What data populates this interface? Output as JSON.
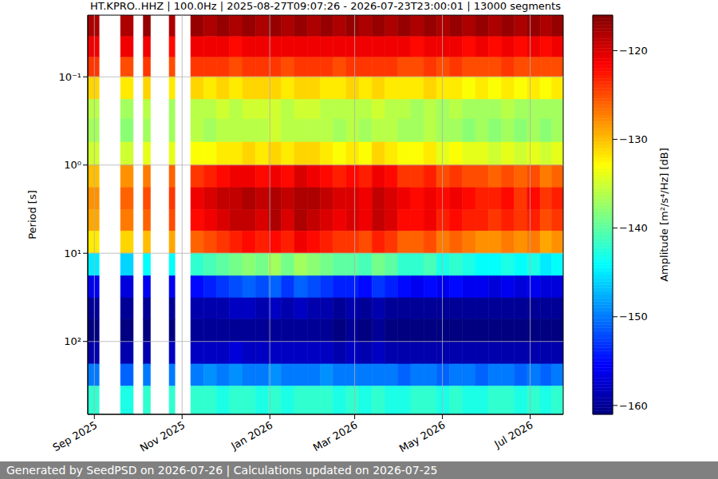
{
  "chart_data": {
    "type": "heatmap",
    "title": "HT.KPRO..HHZ | 100.0Hz | 2025-08-27T09:07:26 - 2026-07-23T23:00:01 | 13000 segments",
    "y_label": "Period [s]",
    "footer": "Generated by SeedPSD on 2026-07-26 | Calculations updated on 2026-07-25",
    "log": "y",
    "grid": true,
    "xlim": [
      -4.6,
      326
    ],
    "xticks": [
      {
        "value": 0,
        "label": "Sep 2025"
      },
      {
        "value": 61,
        "label": "Nov 2025"
      },
      {
        "value": 122,
        "label": "Jan 2026"
      },
      {
        "value": 181,
        "label": "Mar 2026"
      },
      {
        "value": 242,
        "label": "May 2026"
      },
      {
        "value": 303,
        "label": "Jul 2026"
      }
    ],
    "ylim": [
      0.02,
      670
    ],
    "yticks": [
      {
        "value": 0.1,
        "label": "10⁻¹"
      },
      {
        "value": 1,
        "label": "10⁰"
      },
      {
        "value": 10,
        "label": "10¹"
      },
      {
        "value": 100,
        "label": "10²"
      }
    ],
    "row_edges": [
      0.02,
      0.035,
      0.06,
      0.1,
      0.18,
      0.3,
      0.55,
      1,
      1.8,
      3.2,
      5.6,
      10,
      18,
      32,
      56,
      100,
      180,
      320,
      670
    ],
    "colorbar": {
      "label": "Amplitude [m²/s⁴/Hz] [dB]",
      "range": [
        -161,
        -116
      ],
      "ticks": [
        {
          "value": -120,
          "label": "−120"
        },
        {
          "value": -130,
          "label": "−130"
        },
        {
          "value": -140,
          "label": "−140"
        },
        {
          "value": -150,
          "label": "−150"
        },
        {
          "value": -160,
          "label": "−160"
        }
      ]
    },
    "columns": [
      {
        "x0": -4.6,
        "x1": 3.3,
        "values": [
          -118,
          -121,
          -124,
          -131,
          -136,
          -137,
          -135,
          -130,
          -128,
          -129,
          -132,
          -145,
          -156,
          -160,
          -161,
          -159,
          -150,
          -142
        ]
      },
      {
        "x0": 18.2,
        "x1": 27,
        "values": [
          -118,
          -121,
          -125,
          -132,
          -137,
          -138,
          -135,
          -128,
          -126,
          -127,
          -131,
          -146,
          -157,
          -160,
          -161,
          -159,
          -151,
          -143
        ]
      },
      {
        "x0": 34,
        "x1": 39,
        "values": [
          -117,
          -121,
          -124,
          -131,
          -136,
          -137,
          -134,
          -127,
          -125,
          -126,
          -130,
          -144,
          -156,
          -160,
          -161,
          -159,
          -150,
          -142
        ]
      },
      {
        "x0": 52,
        "x1": 56,
        "values": [
          -118,
          -122,
          -125,
          -132,
          -137,
          -137,
          -134,
          -126,
          -124,
          -125,
          -129,
          -144,
          -156,
          -160,
          -161,
          -158,
          -150,
          -142
        ]
      },
      {
        "x0": 67,
        "x1": 76,
        "values": [
          -117,
          -121,
          -124,
          -131,
          -136,
          -136,
          -133,
          -124,
          -121,
          -122,
          -126,
          -142,
          -155,
          -159,
          -160,
          -158,
          -150,
          -142
        ]
      },
      {
        "x0": 76,
        "x1": 85,
        "values": [
          -118,
          -121,
          -124,
          -132,
          -136,
          -137,
          -133,
          -123,
          -120,
          -121,
          -125,
          -141,
          -154,
          -159,
          -160,
          -158,
          -149,
          -142
        ]
      },
      {
        "x0": 85,
        "x1": 94,
        "values": [
          -117,
          -121,
          -124,
          -131,
          -135,
          -136,
          -132,
          -122,
          -119,
          -120,
          -124,
          -140,
          -153,
          -159,
          -160,
          -158,
          -150,
          -143
        ]
      },
      {
        "x0": 94,
        "x1": 103,
        "values": [
          -118,
          -122,
          -125,
          -132,
          -136,
          -136,
          -132,
          -121,
          -119,
          -119,
          -123,
          -139,
          -152,
          -158,
          -160,
          -157,
          -149,
          -142
        ]
      },
      {
        "x0": 103,
        "x1": 112,
        "values": [
          -117,
          -121,
          -124,
          -131,
          -135,
          -136,
          -131,
          -121,
          -118,
          -119,
          -122,
          -138,
          -151,
          -158,
          -160,
          -158,
          -150,
          -142
        ]
      },
      {
        "x0": 112,
        "x1": 121,
        "values": [
          -118,
          -121,
          -124,
          -131,
          -135,
          -136,
          -132,
          -122,
          -119,
          -120,
          -123,
          -139,
          -152,
          -159,
          -160,
          -158,
          -150,
          -143
        ]
      },
      {
        "x0": 121,
        "x1": 130,
        "values": [
          -117,
          -121,
          -124,
          -131,
          -135,
          -135,
          -131,
          -121,
          -118,
          -118,
          -122,
          -137,
          -151,
          -158,
          -160,
          -158,
          -149,
          -142
        ]
      },
      {
        "x0": 130,
        "x1": 139,
        "values": [
          -118,
          -121,
          -125,
          -132,
          -136,
          -136,
          -132,
          -122,
          -119,
          -120,
          -123,
          -139,
          -153,
          -159,
          -160,
          -158,
          -150,
          -143
        ]
      },
      {
        "x0": 139,
        "x1": 148,
        "values": [
          -117,
          -121,
          -124,
          -131,
          -135,
          -136,
          -131,
          -120,
          -118,
          -118,
          -121,
          -137,
          -151,
          -158,
          -160,
          -158,
          -150,
          -142
        ]
      },
      {
        "x0": 148,
        "x1": 157,
        "values": [
          -118,
          -121,
          -124,
          -131,
          -135,
          -136,
          -131,
          -121,
          -118,
          -119,
          -122,
          -138,
          -152,
          -159,
          -160,
          -158,
          -150,
          -142
        ]
      },
      {
        "x0": 157,
        "x1": 166,
        "values": [
          -117,
          -121,
          -124,
          -132,
          -136,
          -136,
          -132,
          -122,
          -119,
          -120,
          -123,
          -139,
          -153,
          -159,
          -160,
          -158,
          -149,
          -142
        ]
      },
      {
        "x0": 166,
        "x1": 175,
        "values": [
          -118,
          -121,
          -125,
          -132,
          -136,
          -137,
          -133,
          -123,
          -120,
          -121,
          -124,
          -140,
          -154,
          -160,
          -161,
          -159,
          -150,
          -143
        ]
      },
      {
        "x0": 175,
        "x1": 184,
        "values": [
          -117,
          -121,
          -124,
          -131,
          -136,
          -136,
          -132,
          -122,
          -120,
          -120,
          -124,
          -140,
          -154,
          -159,
          -160,
          -158,
          -150,
          -142
        ]
      },
      {
        "x0": 184,
        "x1": 193,
        "values": [
          -118,
          -121,
          -124,
          -132,
          -136,
          -137,
          -133,
          -123,
          -121,
          -121,
          -125,
          -141,
          -155,
          -160,
          -161,
          -159,
          -150,
          -143
        ]
      },
      {
        "x0": 193,
        "x1": 202,
        "values": [
          -117,
          -121,
          -124,
          -131,
          -135,
          -136,
          -131,
          -121,
          -119,
          -119,
          -123,
          -139,
          -153,
          -159,
          -160,
          -158,
          -150,
          -142
        ]
      },
      {
        "x0": 202,
        "x1": 211,
        "values": [
          -118,
          -121,
          -124,
          -132,
          -136,
          -136,
          -132,
          -122,
          -120,
          -120,
          -124,
          -140,
          -154,
          -160,
          -161,
          -159,
          -150,
          -143
        ]
      },
      {
        "x0": 211,
        "x1": 220,
        "values": [
          -117,
          -121,
          -125,
          -132,
          -136,
          -137,
          -133,
          -124,
          -121,
          -122,
          -126,
          -142,
          -155,
          -160,
          -161,
          -159,
          -151,
          -143
        ]
      },
      {
        "x0": 220,
        "x1": 229,
        "values": [
          -118,
          -122,
          -125,
          -132,
          -137,
          -137,
          -133,
          -124,
          -122,
          -122,
          -126,
          -142,
          -156,
          -160,
          -161,
          -159,
          -150,
          -142
        ]
      },
      {
        "x0": 229,
        "x1": 238,
        "values": [
          -117,
          -121,
          -124,
          -131,
          -136,
          -136,
          -132,
          -123,
          -121,
          -121,
          -125,
          -141,
          -155,
          -160,
          -161,
          -159,
          -150,
          -142
        ]
      },
      {
        "x0": 238,
        "x1": 247,
        "values": [
          -118,
          -121,
          -125,
          -132,
          -137,
          -137,
          -134,
          -125,
          -122,
          -123,
          -127,
          -143,
          -156,
          -160,
          -161,
          -159,
          -151,
          -143
        ]
      },
      {
        "x0": 247,
        "x1": 256,
        "values": [
          -117,
          -121,
          -124,
          -132,
          -136,
          -137,
          -133,
          -124,
          -121,
          -122,
          -126,
          -142,
          -155,
          -160,
          -161,
          -159,
          -150,
          -142
        ]
      },
      {
        "x0": 256,
        "x1": 265,
        "values": [
          -118,
          -122,
          -125,
          -133,
          -137,
          -138,
          -134,
          -125,
          -122,
          -123,
          -127,
          -143,
          -156,
          -160,
          -161,
          -159,
          -150,
          -143
        ]
      },
      {
        "x0": 265,
        "x1": 274,
        "values": [
          -117,
          -121,
          -125,
          -132,
          -137,
          -137,
          -134,
          -125,
          -123,
          -123,
          -128,
          -144,
          -156,
          -160,
          -161,
          -159,
          -151,
          -143
        ]
      },
      {
        "x0": 274,
        "x1": 283,
        "values": [
          -118,
          -122,
          -125,
          -133,
          -137,
          -138,
          -135,
          -126,
          -123,
          -124,
          -128,
          -144,
          -157,
          -160,
          -161,
          -159,
          -150,
          -142
        ]
      },
      {
        "x0": 283,
        "x1": 292,
        "values": [
          -117,
          -121,
          -124,
          -132,
          -136,
          -137,
          -134,
          -125,
          -122,
          -123,
          -127,
          -143,
          -156,
          -160,
          -161,
          -159,
          -150,
          -142
        ]
      },
      {
        "x0": 292,
        "x1": 301,
        "values": [
          -118,
          -122,
          -125,
          -133,
          -137,
          -138,
          -135,
          -126,
          -124,
          -124,
          -128,
          -144,
          -157,
          -160,
          -161,
          -159,
          -151,
          -143
        ]
      },
      {
        "x0": 301,
        "x1": 310,
        "values": [
          -117,
          -121,
          -125,
          -132,
          -137,
          -137,
          -134,
          -125,
          -122,
          -123,
          -127,
          -143,
          -156,
          -160,
          -161,
          -159,
          -150,
          -142
        ]
      },
      {
        "x0": 310,
        "x1": 318,
        "values": [
          -118,
          -122,
          -125,
          -133,
          -137,
          -138,
          -135,
          -127,
          -124,
          -125,
          -129,
          -145,
          -157,
          -160,
          -161,
          -159,
          -151,
          -143
        ]
      },
      {
        "x0": 318,
        "x1": 326,
        "values": [
          -117,
          -121,
          -125,
          -132,
          -137,
          -137,
          -134,
          -126,
          -123,
          -124,
          -128,
          -144,
          -157,
          -160,
          -161,
          -159,
          -150,
          -142
        ]
      }
    ]
  }
}
